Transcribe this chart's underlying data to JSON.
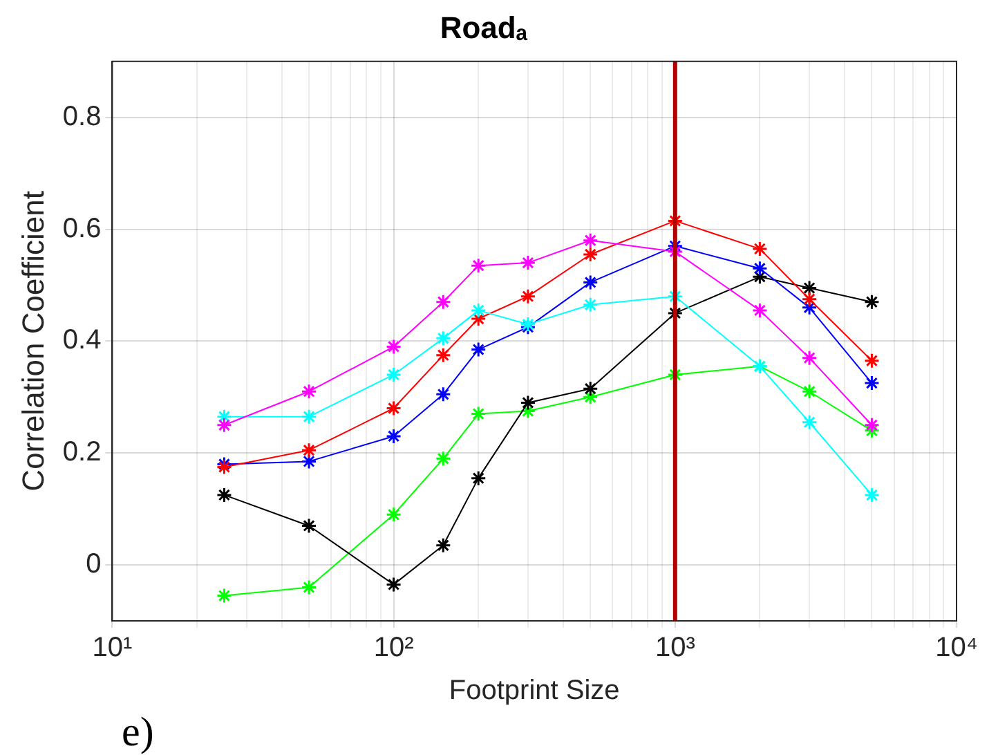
{
  "chart_data": {
    "type": "line",
    "title": "Roadₐ",
    "xlabel": "Footprint Size",
    "ylabel": "Correlation Coefficient",
    "annotations": [
      "e)"
    ],
    "log": "x",
    "grid": true,
    "legend": false,
    "marker": "cross",
    "line_style": "solid",
    "xlim": [
      10,
      10000
    ],
    "xticks": [
      {
        "value": 10,
        "label": "10¹"
      },
      {
        "value": 20,
        "label": null
      },
      {
        "value": 30,
        "label": null
      },
      {
        "value": 40,
        "label": null
      },
      {
        "value": 50,
        "label": null
      },
      {
        "value": 60,
        "label": null
      },
      {
        "value": 70,
        "label": null
      },
      {
        "value": 80,
        "label": null
      },
      {
        "value": 90,
        "label": null
      },
      {
        "value": 100,
        "label": "10²"
      },
      {
        "value": 200,
        "label": null
      },
      {
        "value": 300,
        "label": null
      },
      {
        "value": 400,
        "label": null
      },
      {
        "value": 500,
        "label": null
      },
      {
        "value": 600,
        "label": null
      },
      {
        "value": 700,
        "label": null
      },
      {
        "value": 800,
        "label": null
      },
      {
        "value": 900,
        "label": null
      },
      {
        "value": 1000,
        "label": "10³"
      },
      {
        "value": 2000,
        "label": null
      },
      {
        "value": 3000,
        "label": null
      },
      {
        "value": 4000,
        "label": null
      },
      {
        "value": 5000,
        "label": null
      },
      {
        "value": 6000,
        "label": null
      },
      {
        "value": 7000,
        "label": null
      },
      {
        "value": 8000,
        "label": null
      },
      {
        "value": 9000,
        "label": null
      },
      {
        "value": 10000,
        "label": "10⁴"
      }
    ],
    "ylim": [
      -0.1,
      0.9
    ],
    "yticks": [
      0,
      0.2,
      0.4,
      0.6,
      0.8
    ],
    "x": [
      25,
      50,
      100,
      150,
      200,
      300,
      500,
      1000,
      2000,
      3000,
      5000
    ],
    "series": [
      {
        "color": "#ff00ff",
        "values": [
          0.25,
          0.31,
          0.39,
          0.47,
          0.535,
          0.54,
          0.58,
          0.56,
          0.455,
          0.37,
          0.25
        ]
      },
      {
        "color": "#00ffff",
        "values": [
          0.265,
          0.265,
          0.34,
          0.405,
          0.455,
          0.43,
          0.465,
          0.48,
          0.355,
          0.255,
          0.125
        ]
      },
      {
        "color": "#ff0000",
        "values": [
          0.175,
          0.205,
          0.28,
          0.375,
          0.44,
          0.48,
          0.555,
          0.615,
          0.565,
          0.475,
          0.365
        ]
      },
      {
        "color": "#0000ff",
        "values": [
          0.18,
          0.185,
          0.23,
          0.305,
          0.385,
          0.425,
          0.505,
          0.57,
          0.53,
          0.46,
          0.325
        ]
      },
      {
        "color": "#000000",
        "values": [
          0.125,
          0.07,
          -0.035,
          0.035,
          0.155,
          0.29,
          0.315,
          0.45,
          0.515,
          0.495,
          0.47
        ]
      },
      {
        "color": "#00ff00",
        "values": [
          -0.055,
          -0.04,
          0.09,
          0.19,
          0.27,
          0.275,
          0.3,
          0.34,
          0.355,
          0.31,
          0.24
        ]
      }
    ],
    "ref_lines": [
      {
        "axis": "x",
        "value": 1000,
        "color": "#b00000"
      }
    ]
  }
}
